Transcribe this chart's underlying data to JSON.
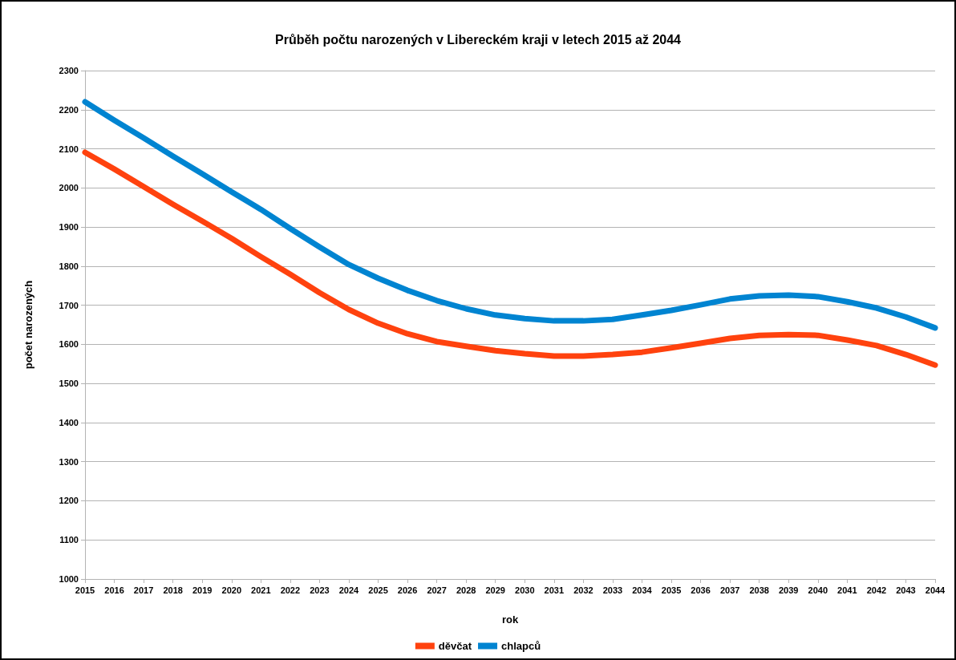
{
  "chart_data": {
    "type": "line",
    "title": "Průběh počtu narozených v Libereckém kraji v letech 2015 až 2044",
    "xlabel": "rok",
    "ylabel": "počet narozených",
    "categories": [
      "2015",
      "2016",
      "2017",
      "2018",
      "2019",
      "2020",
      "2021",
      "2022",
      "2023",
      "2024",
      "2025",
      "2026",
      "2027",
      "2028",
      "2029",
      "2030",
      "2031",
      "2032",
      "2033",
      "2034",
      "2035",
      "2036",
      "2037",
      "2038",
      "2039",
      "2040",
      "2041",
      "2042",
      "2043",
      "2044"
    ],
    "series": [
      {
        "name": "děvčat",
        "color": "#ff420e",
        "values": [
          2091,
          2048,
          2003,
          1958,
          1915,
          1871,
          1824,
          1779,
          1732,
          1689,
          1654,
          1627,
          1607,
          1595,
          1584,
          1576,
          1570,
          1570,
          1574,
          1580,
          1591,
          1603,
          1615,
          1623,
          1625,
          1623,
          1611,
          1597,
          1574,
          1547
        ]
      },
      {
        "name": "chlapců",
        "color": "#0084d1",
        "values": [
          2220,
          2173,
          2128,
          2081,
          2036,
          1990,
          1945,
          1896,
          1849,
          1804,
          1769,
          1738,
          1712,
          1691,
          1675,
          1666,
          1660,
          1660,
          1664,
          1675,
          1687,
          1701,
          1716,
          1724,
          1726,
          1722,
          1709,
          1693,
          1670,
          1642
        ]
      }
    ],
    "ylim": [
      1000,
      2300
    ],
    "yticks": [
      1000,
      1100,
      1200,
      1300,
      1400,
      1500,
      1600,
      1700,
      1800,
      1900,
      2000,
      2100,
      2200,
      2300
    ],
    "grid": "y",
    "legend": "bottom",
    "marker": "none",
    "line_style": "solid"
  }
}
